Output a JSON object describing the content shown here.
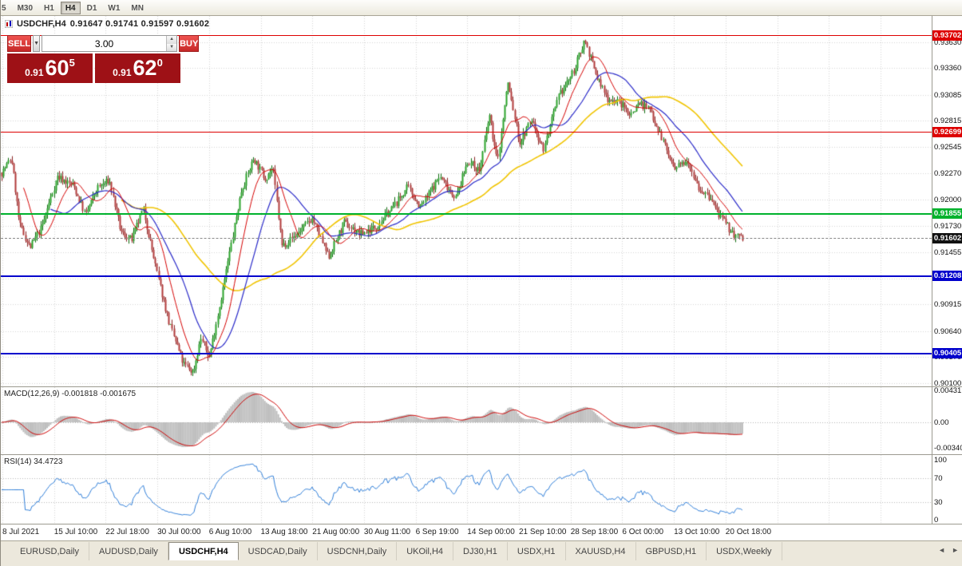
{
  "toolbar": {
    "timeframes": [
      {
        "label": "5",
        "active": false
      },
      {
        "label": "M30",
        "active": false
      },
      {
        "label": "H1",
        "active": false
      },
      {
        "label": "H4",
        "active": true
      },
      {
        "label": "D1",
        "active": false
      },
      {
        "label": "W1",
        "active": false
      },
      {
        "label": "MN",
        "active": false
      }
    ]
  },
  "chart_header": {
    "symbol": "USDCHF,H4",
    "ohlc": "0.91647 0.91741 0.91597 0.91602"
  },
  "trade_panel": {
    "sell_label": "SELL",
    "buy_label": "BUY",
    "volume": "3.00",
    "caret_down": "▼",
    "spin_up": "▲",
    "spin_down": "▼",
    "sell_price": {
      "prefix": "0.91",
      "big": "60",
      "sup": "5"
    },
    "buy_price": {
      "prefix": "0.91",
      "big": "62",
      "sup": "0"
    }
  },
  "price_axis_labels": [
    "0.93630",
    "0.93360",
    "0.93085",
    "0.92815",
    "0.92545",
    "0.92270",
    "0.92000",
    "0.91730",
    "0.91455",
    "0.91180",
    "0.90915",
    "0.90640",
    "0.90370",
    "0.90100"
  ],
  "hlines": [
    {
      "name": "resistance-upper",
      "price": 0.93702,
      "label": "0.93702",
      "color": "#dd0000",
      "thickness": 1
    },
    {
      "name": "resistance",
      "price": 0.92699,
      "label": "0.92699",
      "color": "#dd0000",
      "thickness": 1
    },
    {
      "name": "support-green",
      "price": 0.91855,
      "label": "0.91855",
      "color": "#00b22d",
      "thickness": 2
    },
    {
      "name": "current-bid",
      "price": 0.91602,
      "label": "0.91602",
      "color": "#111111",
      "thickness": 1,
      "dashed": true
    },
    {
      "name": "support-blue-1",
      "price": 0.91208,
      "label": "0.91208",
      "color": "#0000cc",
      "thickness": 2
    },
    {
      "name": "support-blue-2",
      "price": 0.90405,
      "label": "0.90405",
      "color": "#0000cc",
      "thickness": 2
    }
  ],
  "time_axis_labels": [
    "8 Jul 2021",
    "15 Jul 10:00",
    "22 Jul 18:00",
    "30 Jul 00:00",
    "6 Aug 10:00",
    "13 Aug 18:00",
    "21 Aug 00:00",
    "30 Aug 11:00",
    "6 Sep 19:00",
    "14 Sep 00:00",
    "21 Sep 10:00",
    "28 Sep 18:00",
    "6 Oct 00:00",
    "13 Oct 10:00",
    "20 Oct 18:00"
  ],
  "macd_panel": {
    "label": "MACD(12,26,9) -0.001818 -0.001675",
    "axis_labels": [
      {
        "text": "0.00431",
        "value": 0.00431
      },
      {
        "text": "0.00",
        "value": 0
      },
      {
        "text": "-0.00340",
        "value": -0.0034
      }
    ]
  },
  "rsi_panel": {
    "label": "RSI(14) 34.4723",
    "axis_labels": [
      {
        "text": "100",
        "value": 100
      },
      {
        "text": "70",
        "value": 70
      },
      {
        "text": "30",
        "value": 30
      },
      {
        "text": "0",
        "value": 0
      }
    ],
    "levels": [
      70,
      30
    ]
  },
  "tabs": [
    {
      "label": "EURUSD,Daily",
      "active": false
    },
    {
      "label": "AUDUSD,Daily",
      "active": false
    },
    {
      "label": "USDCHF,H4",
      "active": true
    },
    {
      "label": "USDCAD,Daily",
      "active": false
    },
    {
      "label": "USDCNH,Daily",
      "active": false
    },
    {
      "label": "UKOil,H4",
      "active": false
    },
    {
      "label": "DJ30,H1",
      "active": false
    },
    {
      "label": "USDX,H1",
      "active": false
    },
    {
      "label": "XAUUSD,H4",
      "active": false
    },
    {
      "label": "GBPUSD,H1",
      "active": false
    },
    {
      "label": "USDX,Weekly",
      "active": false
    }
  ],
  "tabbar": {
    "scroll_left": "◄",
    "scroll_right": "►"
  },
  "colors": {
    "line_red": "#dd0000",
    "line_green": "#00b22d",
    "line_blue": "#0000cc",
    "big_price_bg": "#9e1116",
    "trade_button_bg": "#d9403a"
  },
  "chart_data": {
    "type": "candlestick",
    "symbol": "USDCHF",
    "timeframe": "H4",
    "ylim": [
      0.90099,
      0.93752
    ],
    "candle_count": 440,
    "seed": 7,
    "bull_color": "#2ba32b",
    "bull_stroke": "#0c6b0c",
    "bear_color": "#b23b3b",
    "bear_stroke": "#8a2525",
    "macd_hist_color": "#bdbdbd",
    "macd_signal_color": "#cc0000",
    "rsi_color": "#2f7ed8",
    "ma_lines": [
      {
        "name": "slow",
        "period": 72,
        "color": "#f0c400",
        "width": 1.6
      },
      {
        "name": "mid",
        "period": 30,
        "color": "#2929c8",
        "width": 1.2
      },
      {
        "name": "fast",
        "period": 14,
        "color": "#d40000",
        "width": 1
      }
    ],
    "anchors": [
      [
        0.0,
        0.9228
      ],
      [
        0.013,
        0.9243
      ],
      [
        0.024,
        0.9174
      ],
      [
        0.038,
        0.915
      ],
      [
        0.054,
        0.9172
      ],
      [
        0.075,
        0.9224
      ],
      [
        0.097,
        0.9214
      ],
      [
        0.113,
        0.9184
      ],
      [
        0.129,
        0.9212
      ],
      [
        0.145,
        0.922
      ],
      [
        0.161,
        0.9166
      ],
      [
        0.175,
        0.9158
      ],
      [
        0.191,
        0.919
      ],
      [
        0.21,
        0.9122
      ],
      [
        0.226,
        0.9072
      ],
      [
        0.245,
        0.903
      ],
      [
        0.258,
        0.9021
      ],
      [
        0.269,
        0.9057
      ],
      [
        0.28,
        0.9036
      ],
      [
        0.301,
        0.9118
      ],
      [
        0.323,
        0.9208
      ],
      [
        0.34,
        0.9243
      ],
      [
        0.355,
        0.9222
      ],
      [
        0.366,
        0.9233
      ],
      [
        0.378,
        0.9152
      ],
      [
        0.398,
        0.9164
      ],
      [
        0.419,
        0.9181
      ],
      [
        0.441,
        0.914
      ],
      [
        0.462,
        0.9176
      ],
      [
        0.484,
        0.9164
      ],
      [
        0.505,
        0.9172
      ],
      [
        0.527,
        0.9191
      ],
      [
        0.548,
        0.9213
      ],
      [
        0.565,
        0.9192
      ],
      [
        0.591,
        0.9224
      ],
      [
        0.613,
        0.9202
      ],
      [
        0.629,
        0.924
      ],
      [
        0.645,
        0.923
      ],
      [
        0.658,
        0.9288
      ],
      [
        0.669,
        0.9238
      ],
      [
        0.683,
        0.9322
      ],
      [
        0.699,
        0.9258
      ],
      [
        0.715,
        0.9283
      ],
      [
        0.731,
        0.9252
      ],
      [
        0.753,
        0.9309
      ],
      [
        0.771,
        0.9331
      ],
      [
        0.787,
        0.9366
      ],
      [
        0.801,
        0.9331
      ],
      [
        0.817,
        0.9305
      ],
      [
        0.833,
        0.9301
      ],
      [
        0.849,
        0.9288
      ],
      [
        0.86,
        0.9301
      ],
      [
        0.876,
        0.9292
      ],
      [
        0.892,
        0.9262
      ],
      [
        0.908,
        0.923
      ],
      [
        0.925,
        0.9243
      ],
      [
        0.941,
        0.9212
      ],
      [
        0.957,
        0.92
      ],
      [
        0.973,
        0.9178
      ],
      [
        0.989,
        0.9163
      ],
      [
        1.0,
        0.916
      ]
    ]
  }
}
